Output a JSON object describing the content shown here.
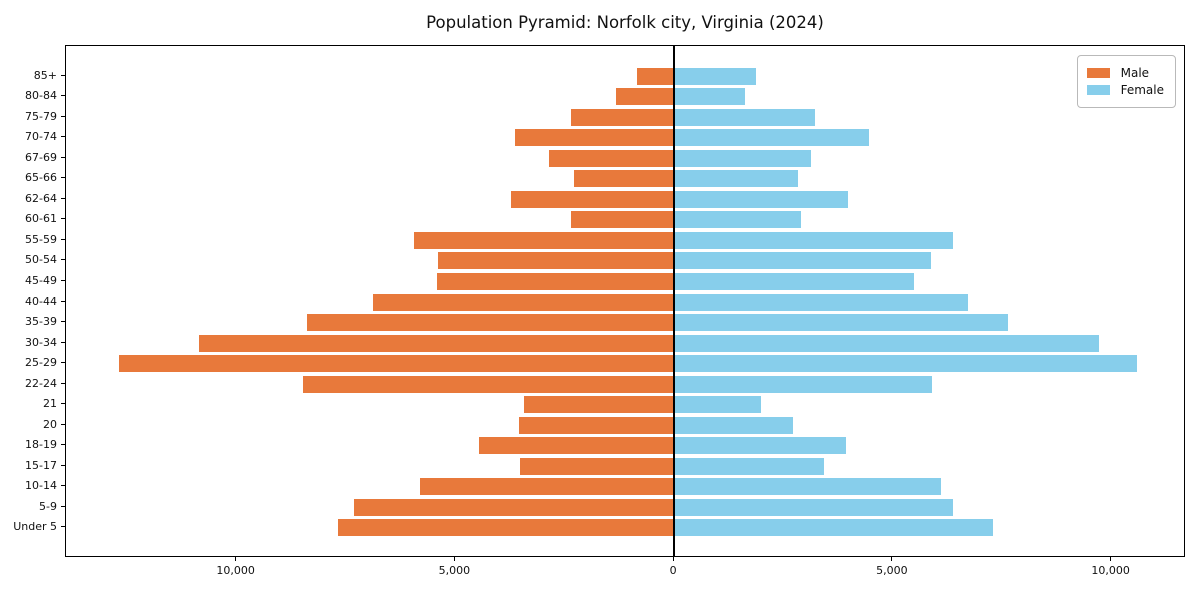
{
  "page": {
    "title": "Population Pyramid: Norfolk city, Virginia (2024)"
  },
  "legend": {
    "items": [
      {
        "label": "Male",
        "color": "#e8793b"
      },
      {
        "label": "Female",
        "color": "#87ceeb"
      }
    ]
  },
  "chart_data": {
    "type": "bar",
    "subtype": "population-pyramid",
    "title": "Population Pyramid: Norfolk city, Virginia (2024)",
    "grid": false,
    "legend_position": "upper-right",
    "zero_line": true,
    "xlim": [
      -13900,
      11700
    ],
    "categories_top_to_bottom": [
      "85+",
      "80-84",
      "75-79",
      "70-74",
      "67-69",
      "65-66",
      "62-64",
      "60-61",
      "55-59",
      "50-54",
      "45-49",
      "40-44",
      "35-39",
      "30-34",
      "25-29",
      "22-24",
      "21",
      "20",
      "18-19",
      "15-17",
      "10-14",
      "5-9",
      "Under 5"
    ],
    "series": [
      {
        "name": "Male",
        "side": "left",
        "color": "#e8793b",
        "values": [
          840,
          1320,
          2360,
          3640,
          2870,
          2280,
          3740,
          2360,
          5950,
          5390,
          5410,
          6880,
          8390,
          10870,
          12700,
          8480,
          3430,
          3550,
          4460,
          3530,
          5820,
          7310,
          7680
        ]
      },
      {
        "name": "Female",
        "side": "right",
        "color": "#87ceeb",
        "values": [
          1870,
          1630,
          3210,
          4450,
          3120,
          2820,
          3980,
          2900,
          6370,
          5870,
          5480,
          6720,
          7630,
          9710,
          10570,
          5890,
          1990,
          2710,
          3930,
          3420,
          6100,
          6370,
          7290
        ]
      }
    ],
    "x_ticks": [
      {
        "value": -10000,
        "label": "10,000"
      },
      {
        "value": -5000,
        "label": "5,000"
      },
      {
        "value": 0,
        "label": "0"
      },
      {
        "value": 5000,
        "label": "5,000"
      },
      {
        "value": 10000,
        "label": "10,000"
      }
    ]
  }
}
